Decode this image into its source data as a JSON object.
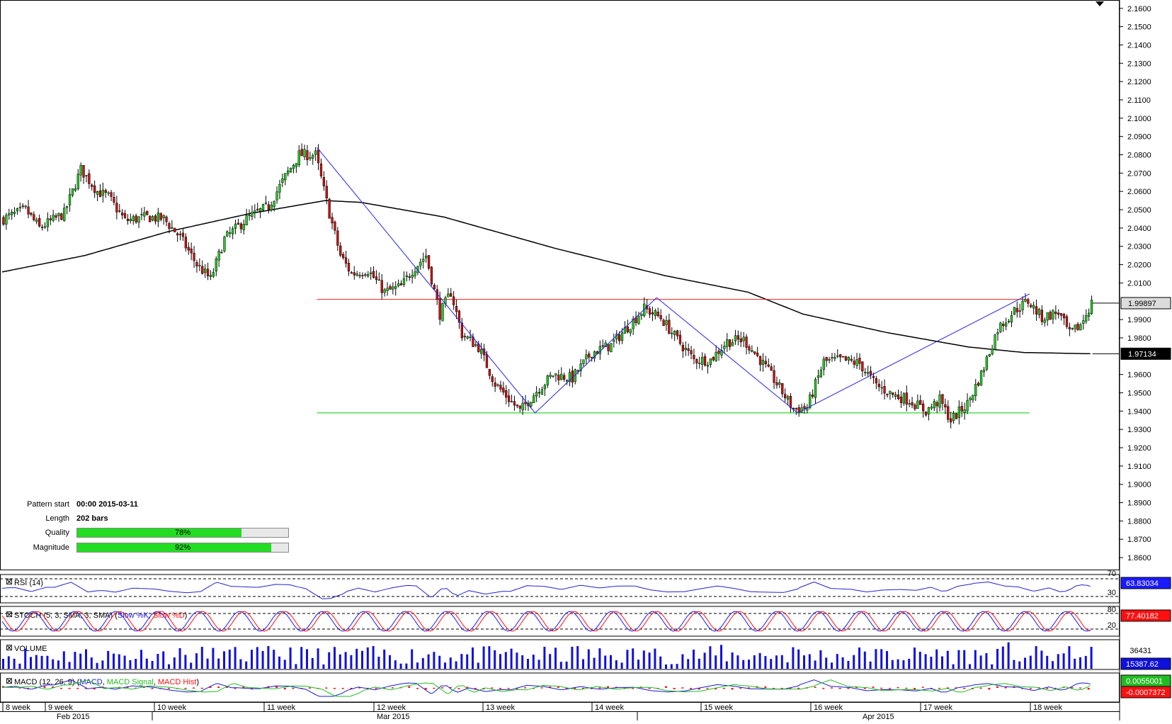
{
  "pattern_info": {
    "pattern_start_label": "Pattern start",
    "pattern_start_value": "00:00 2015-03-11",
    "length_label": "Length",
    "length_value": "202 bars",
    "quality_label": "Quality",
    "quality_pct": 78,
    "quality_text": "78%",
    "magnitude_label": "Magnitude",
    "magnitude_pct": 92,
    "magnitude_text": "92%"
  },
  "price_axis": {
    "ticks": [
      "2.1600",
      "2.1500",
      "2.1400",
      "2.1300",
      "2.1200",
      "2.1100",
      "2.1000",
      "2.0900",
      "2.0800",
      "2.0700",
      "2.0600",
      "2.0500",
      "2.0400",
      "2.0300",
      "2.0200",
      "2.0100",
      "1.9900",
      "1.9800",
      "1.9600",
      "1.9500",
      "1.9400",
      "1.9300",
      "1.9200",
      "1.9100",
      "1.9000",
      "1.8900",
      "1.8800",
      "1.8700",
      "1.8600"
    ],
    "current_price": "1.99897",
    "ma_value": "1.97134"
  },
  "indicators": {
    "rsi": {
      "label": "RSI (14)",
      "level_high": "70",
      "level_low": "30",
      "value": "63.83034"
    },
    "stoch": {
      "label_prefix": "STOCH (5, 3, SMA, 3, SMA) (",
      "slow_k": "Slow %K",
      "sep": ", ",
      "slow_d": "Slow %D",
      "label_suffix": ")",
      "level_high": "80",
      "level_low": "20",
      "value": "77.40182"
    },
    "volume": {
      "label": "VOLUME",
      "max": "36431",
      "value": "15387.62"
    },
    "macd": {
      "label_prefix": "MACD (12, 26, 9) (",
      "macd": "MACD",
      "signal": "MACD Signal",
      "hist": "MACD Hist",
      "sep": ", ",
      "label_suffix": ")",
      "value_macd": "0.0055001",
      "value_hist": "-0.0007372"
    }
  },
  "time_axis": {
    "weeks": [
      "8 week",
      "9 week",
      "10 week",
      "11 week",
      "12 week",
      "13 week",
      "14 week",
      "15 week",
      "16 week",
      "17 week",
      "18 week"
    ],
    "months": [
      "Feb 2015",
      "Mar 2015",
      "Apr 2015"
    ]
  },
  "colors": {
    "up_candle": "#22cc22",
    "down_candle": "#cc1111",
    "ma_line": "#000000",
    "resistance": "#ff2020",
    "support": "#00cc00",
    "pattern_line": "#2222ee",
    "volume": "#1010dd",
    "rsi_line": "#2222cc",
    "stoch_k": "#1a1aff",
    "stoch_d": "#ff1010",
    "macd_line": "#1a1acc",
    "macd_signal": "#22bb22",
    "macd_hist": "#ff1010"
  },
  "chart_data": {
    "type": "candlestick",
    "title": "",
    "y_range": [
      1.855,
      2.163
    ],
    "pattern": "double/triple bottom with resistance 2.0010 and support 1.9390",
    "resistance_level": 2.001,
    "support_level": 1.939,
    "moving_average_last": 1.97134,
    "last_price": 1.99897,
    "close_path_keypoints": [
      {
        "bar": 0,
        "price": 2.045
      },
      {
        "bar": 8,
        "price": 2.05
      },
      {
        "bar": 13,
        "price": 2.04
      },
      {
        "bar": 22,
        "price": 2.048
      },
      {
        "bar": 28,
        "price": 2.072
      },
      {
        "bar": 34,
        "price": 2.06
      },
      {
        "bar": 38,
        "price": 2.057
      },
      {
        "bar": 44,
        "price": 2.044
      },
      {
        "bar": 52,
        "price": 2.046
      },
      {
        "bar": 58,
        "price": 2.045
      },
      {
        "bar": 64,
        "price": 2.035
      },
      {
        "bar": 70,
        "price": 2.02
      },
      {
        "bar": 75,
        "price": 2.012
      },
      {
        "bar": 80,
        "price": 2.034
      },
      {
        "bar": 88,
        "price": 2.045
      },
      {
        "bar": 96,
        "price": 2.052
      },
      {
        "bar": 102,
        "price": 2.068
      },
      {
        "bar": 107,
        "price": 2.08
      },
      {
        "bar": 113,
        "price": 2.08
      },
      {
        "bar": 118,
        "price": 2.048
      },
      {
        "bar": 122,
        "price": 2.025
      },
      {
        "bar": 126,
        "price": 2.015
      },
      {
        "bar": 132,
        "price": 2.017
      },
      {
        "bar": 138,
        "price": 2.005
      },
      {
        "bar": 144,
        "price": 2.008
      },
      {
        "bar": 148,
        "price": 2.017
      },
      {
        "bar": 153,
        "price": 2.025
      },
      {
        "bar": 158,
        "price": 1.993
      },
      {
        "bar": 162,
        "price": 2.005
      },
      {
        "bar": 166,
        "price": 1.982
      },
      {
        "bar": 172,
        "price": 1.975
      },
      {
        "bar": 178,
        "price": 1.955
      },
      {
        "bar": 187,
        "price": 1.94
      },
      {
        "bar": 193,
        "price": 1.951
      },
      {
        "bar": 199,
        "price": 1.96
      },
      {
        "bar": 206,
        "price": 1.958
      },
      {
        "bar": 213,
        "price": 1.972
      },
      {
        "bar": 220,
        "price": 1.976
      },
      {
        "bar": 226,
        "price": 1.986
      },
      {
        "bar": 232,
        "price": 1.996
      },
      {
        "bar": 238,
        "price": 1.991
      },
      {
        "bar": 244,
        "price": 1.979
      },
      {
        "bar": 250,
        "price": 1.968
      },
      {
        "bar": 256,
        "price": 1.968
      },
      {
        "bar": 262,
        "price": 1.978
      },
      {
        "bar": 268,
        "price": 1.979
      },
      {
        "bar": 274,
        "price": 1.968
      },
      {
        "bar": 280,
        "price": 1.955
      },
      {
        "bar": 286,
        "price": 1.941
      },
      {
        "bar": 291,
        "price": 1.942
      },
      {
        "bar": 297,
        "price": 1.967
      },
      {
        "bar": 303,
        "price": 1.968
      },
      {
        "bar": 310,
        "price": 1.966
      },
      {
        "bar": 316,
        "price": 1.954
      },
      {
        "bar": 322,
        "price": 1.949
      },
      {
        "bar": 328,
        "price": 1.946
      },
      {
        "bar": 334,
        "price": 1.94
      },
      {
        "bar": 339,
        "price": 1.946
      },
      {
        "bar": 343,
        "price": 1.935
      },
      {
        "bar": 349,
        "price": 1.944
      },
      {
        "bar": 354,
        "price": 1.96
      },
      {
        "bar": 360,
        "price": 1.985
      },
      {
        "bar": 366,
        "price": 1.995
      },
      {
        "bar": 371,
        "price": 2.0
      },
      {
        "bar": 376,
        "price": 1.991
      },
      {
        "bar": 382,
        "price": 1.994
      },
      {
        "bar": 386,
        "price": 1.982
      },
      {
        "bar": 390,
        "price": 1.987
      },
      {
        "bar": 394,
        "price": 1.999
      }
    ],
    "moving_average_keypoints": [
      {
        "bar": 0,
        "price": 2.016
      },
      {
        "bar": 30,
        "price": 2.025
      },
      {
        "bar": 60,
        "price": 2.038
      },
      {
        "bar": 90,
        "price": 2.048
      },
      {
        "bar": 117,
        "price": 2.055
      },
      {
        "bar": 130,
        "price": 2.054
      },
      {
        "bar": 160,
        "price": 2.046
      },
      {
        "bar": 200,
        "price": 2.029
      },
      {
        "bar": 240,
        "price": 2.014
      },
      {
        "bar": 270,
        "price": 2.005
      },
      {
        "bar": 290,
        "price": 1.993
      },
      {
        "bar": 320,
        "price": 1.983
      },
      {
        "bar": 350,
        "price": 1.975
      },
      {
        "bar": 370,
        "price": 1.972
      },
      {
        "bar": 394,
        "price": 1.97134
      }
    ],
    "pattern_lines": [
      [
        {
          "bar": 114,
          "price": 2.084
        },
        {
          "bar": 193,
          "price": 1.939
        }
      ],
      [
        {
          "bar": 193,
          "price": 1.939
        },
        {
          "bar": 237,
          "price": 2.002
        }
      ],
      [
        {
          "bar": 237,
          "price": 2.002
        },
        {
          "bar": 288,
          "price": 1.939
        }
      ],
      [
        {
          "bar": 288,
          "price": 1.939
        },
        {
          "bar": 372,
          "price": 2.004
        }
      ]
    ]
  }
}
